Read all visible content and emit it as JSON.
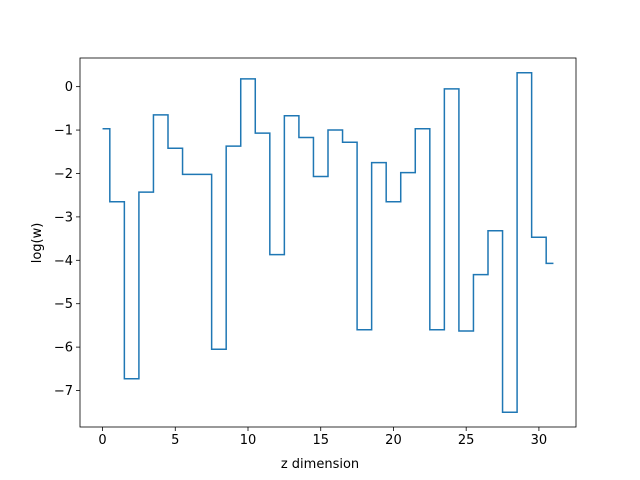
{
  "chart_data": {
    "type": "line",
    "drawstyle": "steps-mid",
    "xlabel": "z dimension",
    "ylabel": "log(w)",
    "xlim": [
      -1.55,
      32.55
    ],
    "ylim": [
      -7.84,
      0.66
    ],
    "xticks": [
      0,
      5,
      10,
      15,
      20,
      25,
      30
    ],
    "yticks": [
      0,
      -1,
      -2,
      -3,
      -4,
      -5,
      -6,
      -7
    ],
    "series_color": "#1f77b4",
    "grid": false,
    "series": [
      {
        "x": [
          0,
          1,
          2,
          3,
          4,
          5,
          6,
          7,
          8,
          9,
          10,
          11,
          12,
          13,
          14,
          15,
          16,
          17,
          18,
          19,
          20,
          21,
          22,
          23,
          24,
          25,
          26,
          27,
          28,
          29,
          30,
          31
        ],
        "values": [
          -0.97,
          -2.65,
          -6.73,
          -2.43,
          -0.65,
          -1.42,
          -2.02,
          -2.02,
          -6.05,
          -1.37,
          0.18,
          -1.07,
          -3.87,
          -0.67,
          -1.17,
          -2.07,
          -1.0,
          -1.28,
          -5.6,
          -1.75,
          -2.65,
          -1.98,
          -0.97,
          -5.6,
          -0.05,
          -5.63,
          -4.33,
          -3.32,
          -7.5,
          0.32,
          -3.47,
          -4.07
        ]
      }
    ]
  }
}
